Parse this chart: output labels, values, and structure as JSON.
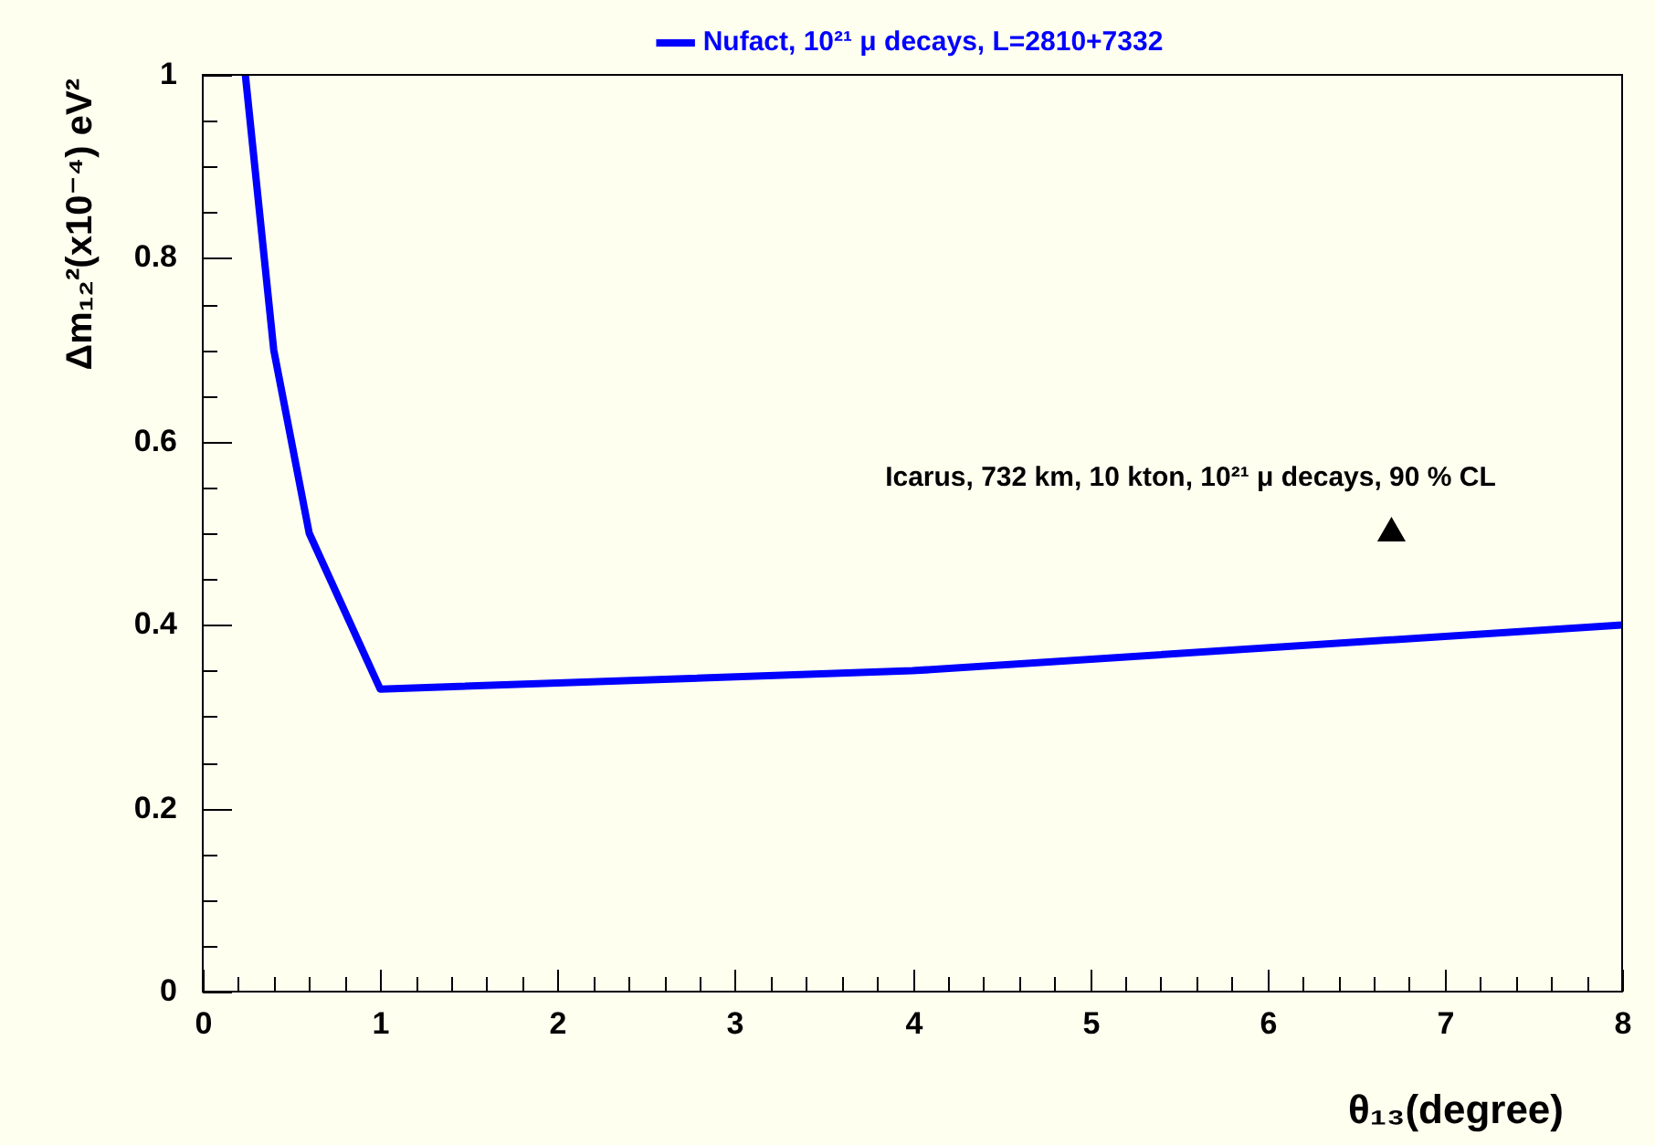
{
  "chart_data": {
    "type": "line",
    "xlabel": "θ₁₃(degree)",
    "ylabel": "Δm₁₂²(x10⁻⁴) eV²",
    "xlim": [
      0,
      8
    ],
    "ylim": [
      0,
      1
    ],
    "xticks": [
      0,
      {
        "value": 0.2,
        "label": null
      },
      {
        "value": 0.4,
        "label": null
      },
      {
        "value": 0.6,
        "label": null
      },
      {
        "value": 0.8,
        "label": null
      },
      1,
      {
        "value": 1.2,
        "label": null
      },
      {
        "value": 1.4,
        "label": null
      },
      {
        "value": 1.6,
        "label": null
      },
      {
        "value": 1.8,
        "label": null
      },
      2,
      {
        "value": 2.2,
        "label": null
      },
      {
        "value": 2.4,
        "label": null
      },
      {
        "value": 2.6,
        "label": null
      },
      {
        "value": 2.8,
        "label": null
      },
      3,
      {
        "value": 3.2,
        "label": null
      },
      {
        "value": 3.4,
        "label": null
      },
      {
        "value": 3.6,
        "label": null
      },
      {
        "value": 3.8,
        "label": null
      },
      4,
      {
        "value": 4.2,
        "label": null
      },
      {
        "value": 4.4,
        "label": null
      },
      {
        "value": 4.6,
        "label": null
      },
      {
        "value": 4.8,
        "label": null
      },
      5,
      {
        "value": 5.2,
        "label": null
      },
      {
        "value": 5.4,
        "label": null
      },
      {
        "value": 5.6,
        "label": null
      },
      {
        "value": 5.8,
        "label": null
      },
      6,
      {
        "value": 6.2,
        "label": null
      },
      {
        "value": 6.4,
        "label": null
      },
      {
        "value": 6.6,
        "label": null
      },
      {
        "value": 6.8,
        "label": null
      },
      7,
      {
        "value": 7.2,
        "label": null
      },
      {
        "value": 7.4,
        "label": null
      },
      {
        "value": 7.6,
        "label": null
      },
      {
        "value": 7.8,
        "label": null
      },
      8
    ],
    "yticks": [
      0,
      {
        "value": 0.05,
        "label": null
      },
      {
        "value": 0.1,
        "label": null
      },
      {
        "value": 0.15,
        "label": null
      },
      0.2,
      {
        "value": 0.25,
        "label": null
      },
      {
        "value": 0.3,
        "label": null
      },
      {
        "value": 0.35,
        "label": null
      },
      0.4,
      {
        "value": 0.45,
        "label": null
      },
      {
        "value": 0.5,
        "label": null
      },
      {
        "value": 0.55,
        "label": null
      },
      0.6,
      {
        "value": 0.65,
        "label": null
      },
      {
        "value": 0.7,
        "label": null
      },
      {
        "value": 0.75,
        "label": null
      },
      0.8,
      {
        "value": 0.85,
        "label": null
      },
      {
        "value": 0.9,
        "label": null
      },
      {
        "value": 0.95,
        "label": null
      },
      1
    ],
    "grid": false,
    "legend": "top",
    "series": [
      {
        "name": "Nufact, 10²¹ μ decays, L=2810+7332",
        "color": "#0000ff",
        "marker": "none",
        "line_style": "solid",
        "x": [
          0.24,
          0.4,
          0.6,
          1,
          4,
          8
        ],
        "values": [
          1,
          0.7,
          0.5,
          0.33,
          0.35,
          0.4
        ]
      },
      {
        "name": "Icarus, 732 km, 10 kton, 10²¹ μ decays, 90 % CL",
        "color": "#000000",
        "type": "scatter",
        "marker": "triangle",
        "x": [
          6.7
        ],
        "values": [
          0.5
        ]
      }
    ]
  }
}
